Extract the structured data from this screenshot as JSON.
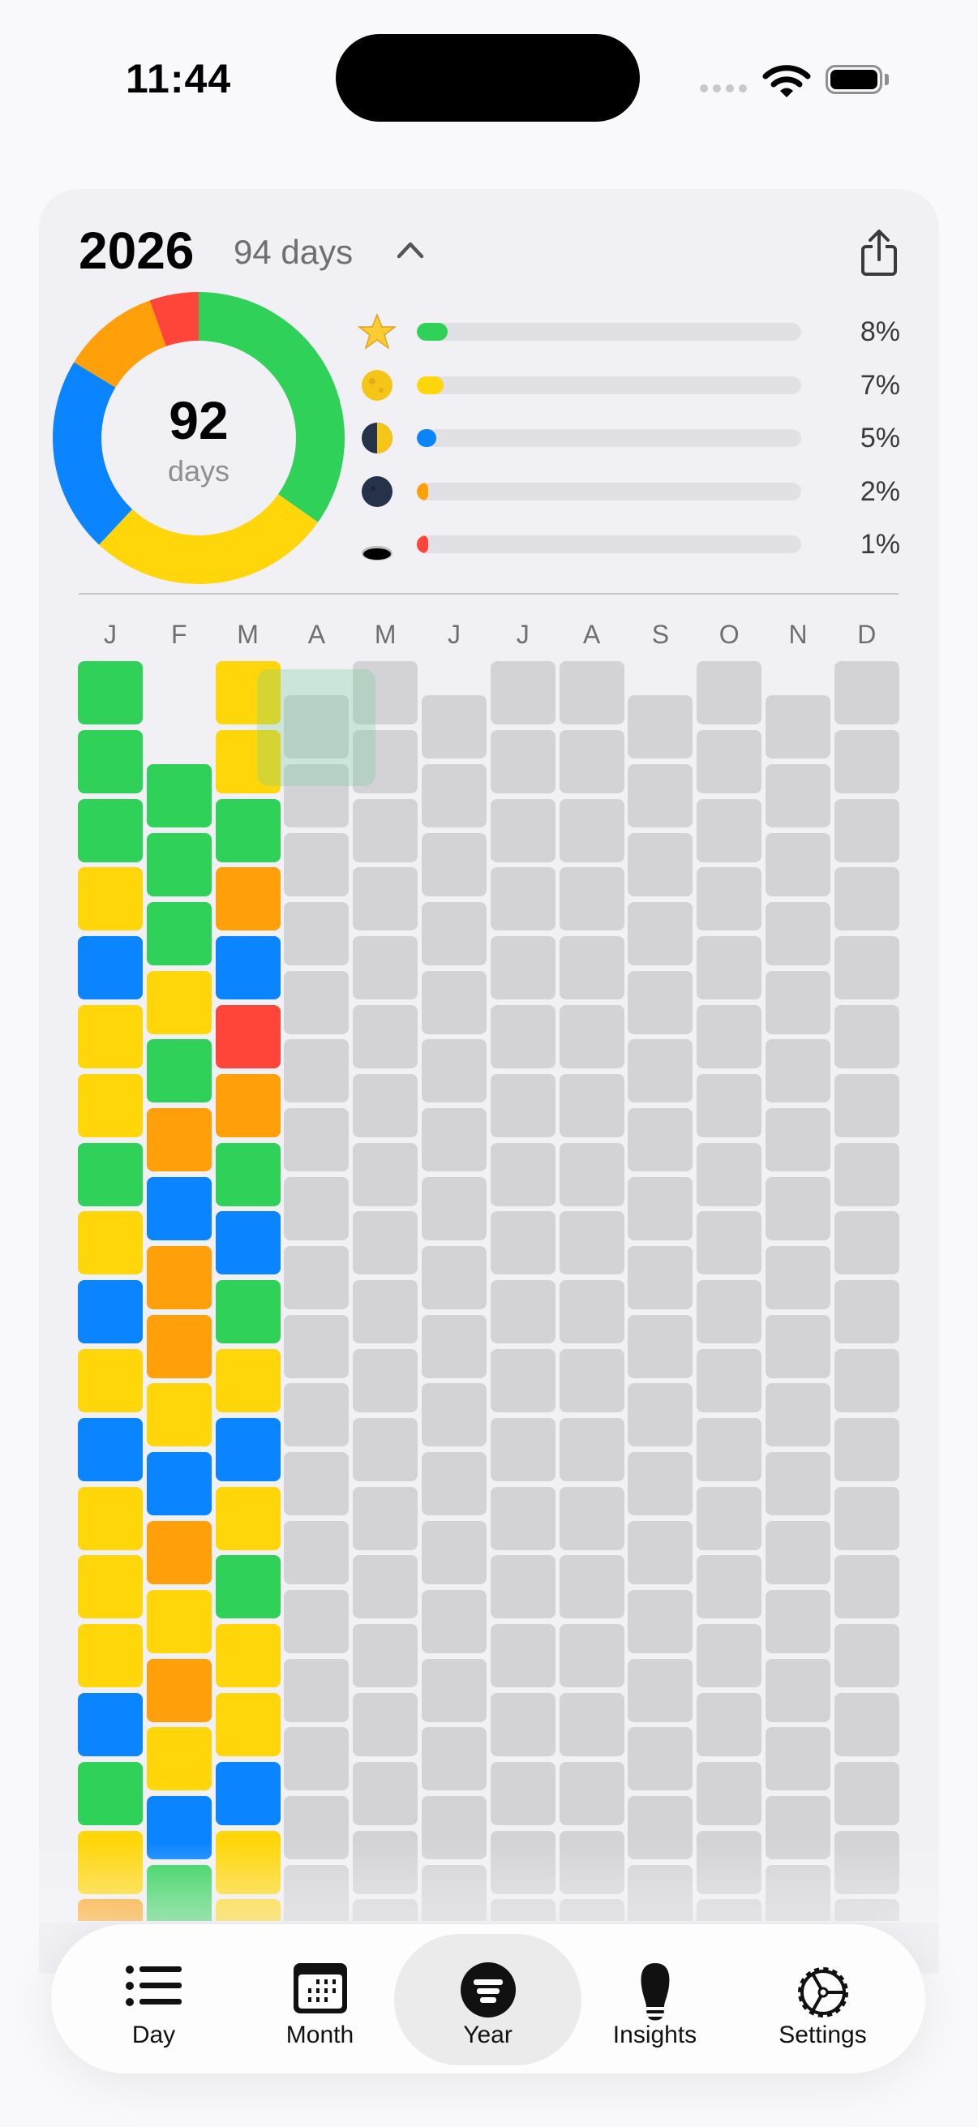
{
  "status_bar": {
    "time": "11:44"
  },
  "header": {
    "year": "2026",
    "days_label": "94 days",
    "chevron": "chevron-up-icon",
    "share": "share-icon"
  },
  "summary": {
    "total": "92",
    "total_label": "days",
    "segments": [
      {
        "key": "G",
        "count": 32,
        "color": "#30d158"
      },
      {
        "key": "Y",
        "count": 25,
        "color": "#ffd60a"
      },
      {
        "key": "B",
        "count": 20,
        "color": "#0a84ff"
      },
      {
        "key": "O",
        "count": 10,
        "color": "#ff9f0a"
      },
      {
        "key": "R",
        "count": 5,
        "color": "#ff453a"
      }
    ]
  },
  "legend": [
    {
      "icon": "star-icon",
      "percent": 8,
      "label": "8%",
      "color": "#30d158"
    },
    {
      "icon": "full-moon-icon",
      "percent": 7,
      "label": "7%",
      "color": "#ffd60a"
    },
    {
      "icon": "half-moon-icon",
      "percent": 5,
      "label": "5%",
      "color": "#0a84ff"
    },
    {
      "icon": "new-moon-icon",
      "percent": 2,
      "label": "2%",
      "color": "#ff9f0a"
    },
    {
      "icon": "hole-icon",
      "percent": 1,
      "label": "1%",
      "color": "#ff453a"
    }
  ],
  "colors": {
    "G": "#30d158",
    "Y": "#ffd60a",
    "B": "#0a84ff",
    "O": "#ff9f0a",
    "R": "#ff453a",
    "empty": "#d2d2d7"
  },
  "months": [
    {
      "label": "J",
      "days": 31,
      "moods": [
        "G",
        "G",
        "G",
        "Y",
        "B",
        "Y",
        "Y",
        "G",
        "Y",
        "B",
        "Y",
        "B",
        "Y",
        "Y",
        "Y",
        "B",
        "G",
        "Y",
        "O"
      ]
    },
    {
      "label": "F",
      "days": 28,
      "moods": [
        "G",
        "G",
        "G",
        "Y",
        "G",
        "O",
        "B",
        "O",
        "O",
        "Y",
        "B",
        "O",
        "Y",
        "O",
        "Y",
        "B",
        "G"
      ]
    },
    {
      "label": "M",
      "days": 31,
      "moods": [
        "Y",
        "Y",
        "G",
        "O",
        "B",
        "R",
        "O",
        "G",
        "B",
        "G",
        "Y",
        "B",
        "Y",
        "G",
        "Y",
        "Y",
        "B",
        "Y",
        "Y"
      ]
    },
    {
      "label": "A",
      "days": 30,
      "moods": []
    },
    {
      "label": "M",
      "days": 31,
      "moods": []
    },
    {
      "label": "J",
      "days": 30,
      "moods": []
    },
    {
      "label": "J",
      "days": 31,
      "moods": []
    },
    {
      "label": "A",
      "days": 31,
      "moods": []
    },
    {
      "label": "S",
      "days": 30,
      "moods": []
    },
    {
      "label": "O",
      "days": 31,
      "moods": []
    },
    {
      "label": "N",
      "days": 30,
      "moods": []
    },
    {
      "label": "D",
      "days": 31,
      "moods": []
    }
  ],
  "tabs": [
    {
      "label": "Day",
      "icon": "list-icon",
      "selected": false
    },
    {
      "label": "Month",
      "icon": "calendar-icon",
      "selected": false
    },
    {
      "label": "Year",
      "icon": "year-filter-icon",
      "selected": true
    },
    {
      "label": "Insights",
      "icon": "lightbulb-icon",
      "selected": false
    },
    {
      "label": "Settings",
      "icon": "gear-icon",
      "selected": false
    }
  ]
}
